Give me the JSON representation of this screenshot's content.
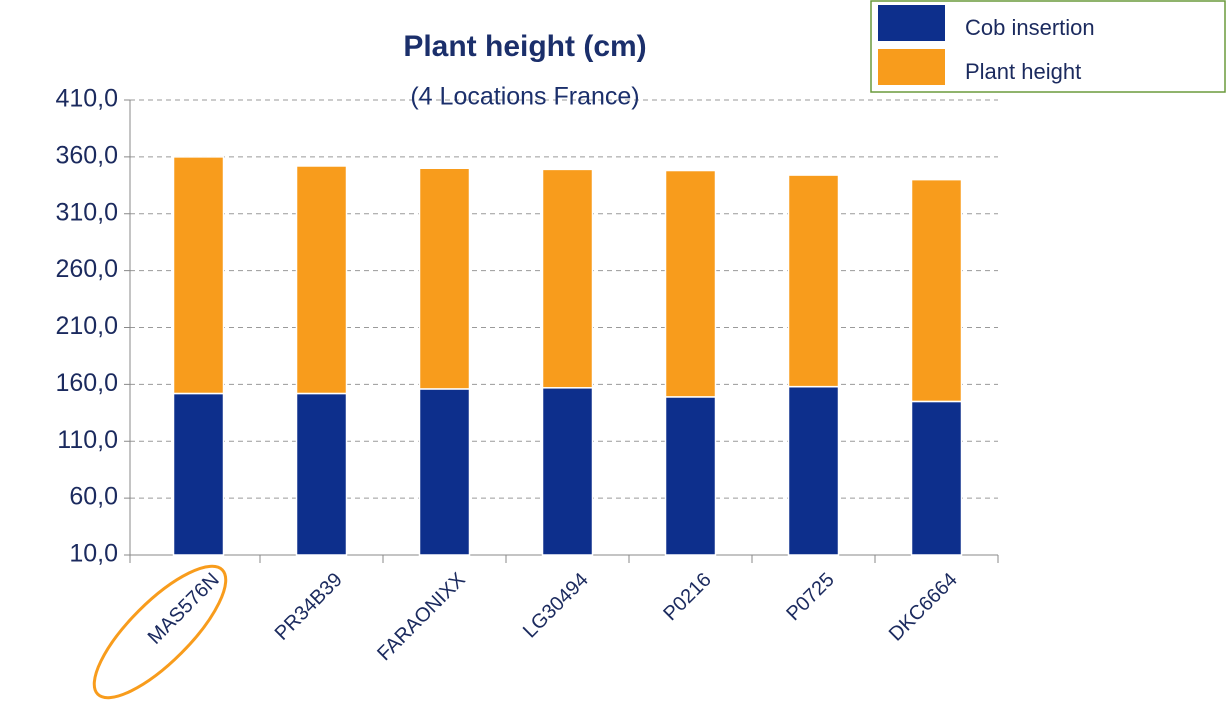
{
  "chart_data": {
    "type": "stacked_bar",
    "title": "Plant  height (cm)",
    "subtitle": "(4 Locations France)",
    "categories": [
      "MAS576N",
      "PR34B39",
      "FARAONIXX",
      "LG30494",
      "P0216",
      "P0725",
      "DKC6664"
    ],
    "series": [
      {
        "name": "Cob insertion",
        "color": "#0d2f8c",
        "values": [
          152,
          152,
          156,
          157,
          149,
          158,
          145
        ]
      },
      {
        "name": "Plant height",
        "color": "#f89c1c",
        "values": [
          208,
          200,
          194,
          192,
          199,
          186,
          195
        ]
      }
    ],
    "ylim": [
      10,
      410
    ],
    "yticks": [
      {
        "value": 10,
        "label": "10,0"
      },
      {
        "value": 60,
        "label": "60,0"
      },
      {
        "value": 110,
        "label": "110,0"
      },
      {
        "value": 160,
        "label": "160,0"
      },
      {
        "value": 210,
        "label": "210,0"
      },
      {
        "value": 260,
        "label": "260,0"
      },
      {
        "value": 310,
        "label": "310,0"
      },
      {
        "value": 360,
        "label": "360,0"
      },
      {
        "value": 410,
        "label": "410,0"
      }
    ],
    "grid": true,
    "legend": "top-right"
  }
}
